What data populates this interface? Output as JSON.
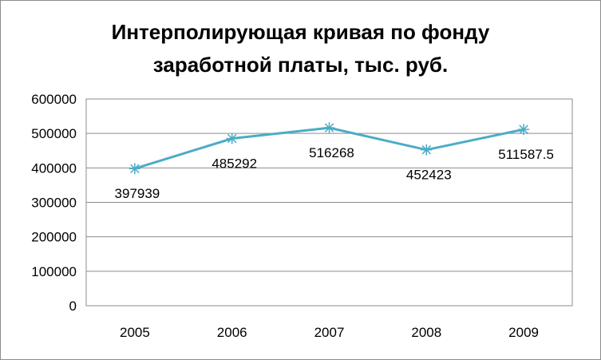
{
  "chart_data": {
    "type": "line",
    "title_line1": "Интерполирующая кривая по фонду",
    "title_line2": "заработной платы, тыс. руб.",
    "categories": [
      "2005",
      "2006",
      "2007",
      "2008",
      "2009"
    ],
    "series": [
      {
        "values": [
          397939,
          485292,
          516268,
          452423,
          511587.5
        ],
        "labels": [
          "397939",
          "485292",
          "516268",
          "452423",
          "511587.5"
        ],
        "color": "#4bacc6"
      }
    ],
    "ylim": [
      0,
      600000
    ],
    "yticks": [
      "0",
      "100000",
      "200000",
      "300000",
      "400000",
      "500000",
      "600000"
    ],
    "xlabel": "",
    "ylabel": "",
    "grid": true,
    "legend": "none"
  }
}
